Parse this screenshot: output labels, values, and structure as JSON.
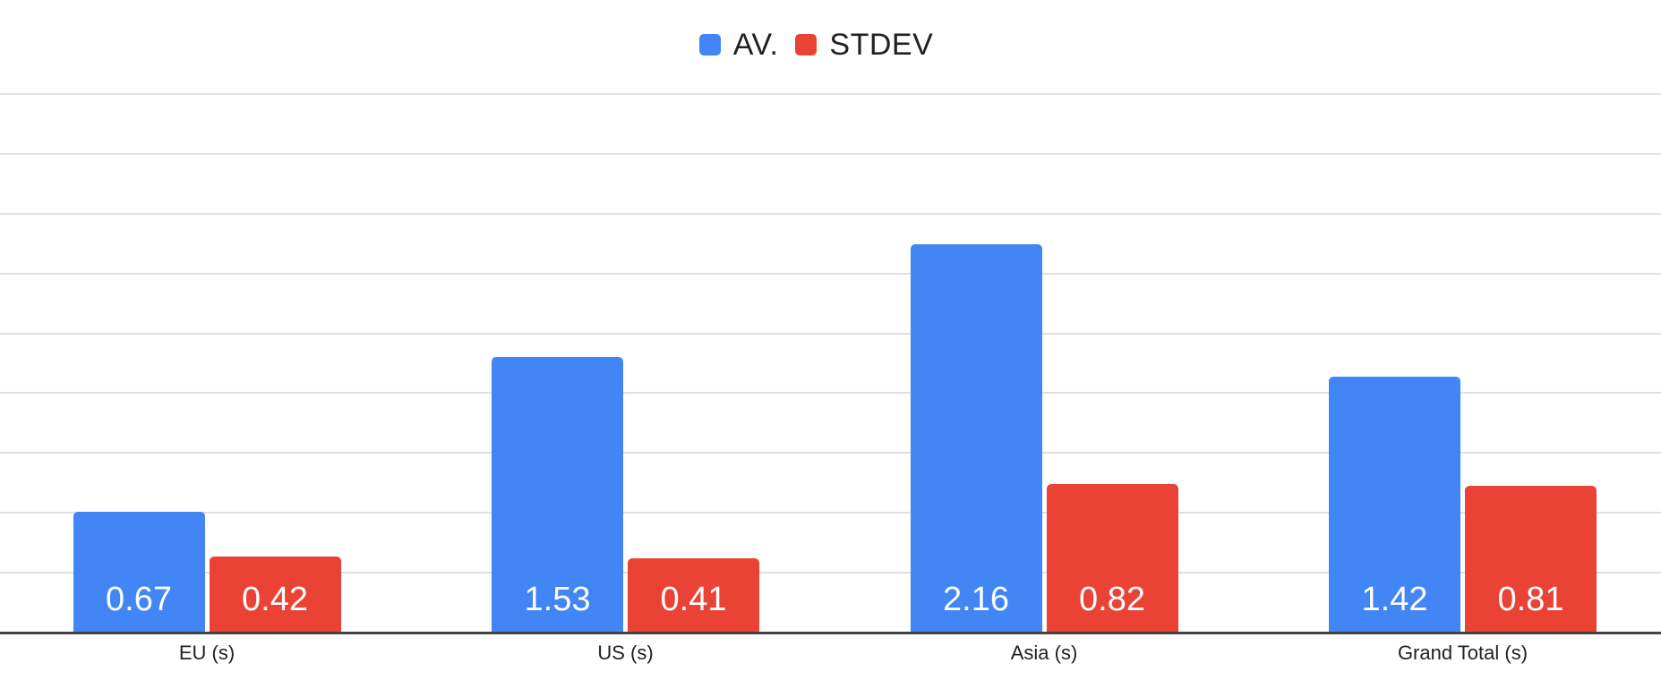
{
  "chart_data": {
    "type": "bar",
    "title": "",
    "xlabel": "",
    "ylabel": "",
    "categories": [
      "EU (s)",
      "US (s)",
      "Asia (s)",
      "Grand Total (s)"
    ],
    "series": [
      {
        "name": "AV.",
        "color": "#4285F4",
        "values": [
          0.67,
          1.53,
          2.16,
          1.42
        ]
      },
      {
        "name": "STDEV",
        "color": "#EA4335",
        "values": [
          0.42,
          0.41,
          0.82,
          0.81
        ]
      }
    ],
    "ylim": [
      0,
      3
    ],
    "y_gridline_intervals": 9,
    "grid": true,
    "y_axis_labels_visible": false,
    "legend_position": "top",
    "value_label_decimals": 2
  },
  "style": {
    "background": "#FFFFFF",
    "gridline_color": "#E0E0E0",
    "baseline_color": "#424242",
    "data_label_color": "#FFFFFF",
    "axis_label_color": "#202124",
    "legend_text_color": "#202124"
  }
}
